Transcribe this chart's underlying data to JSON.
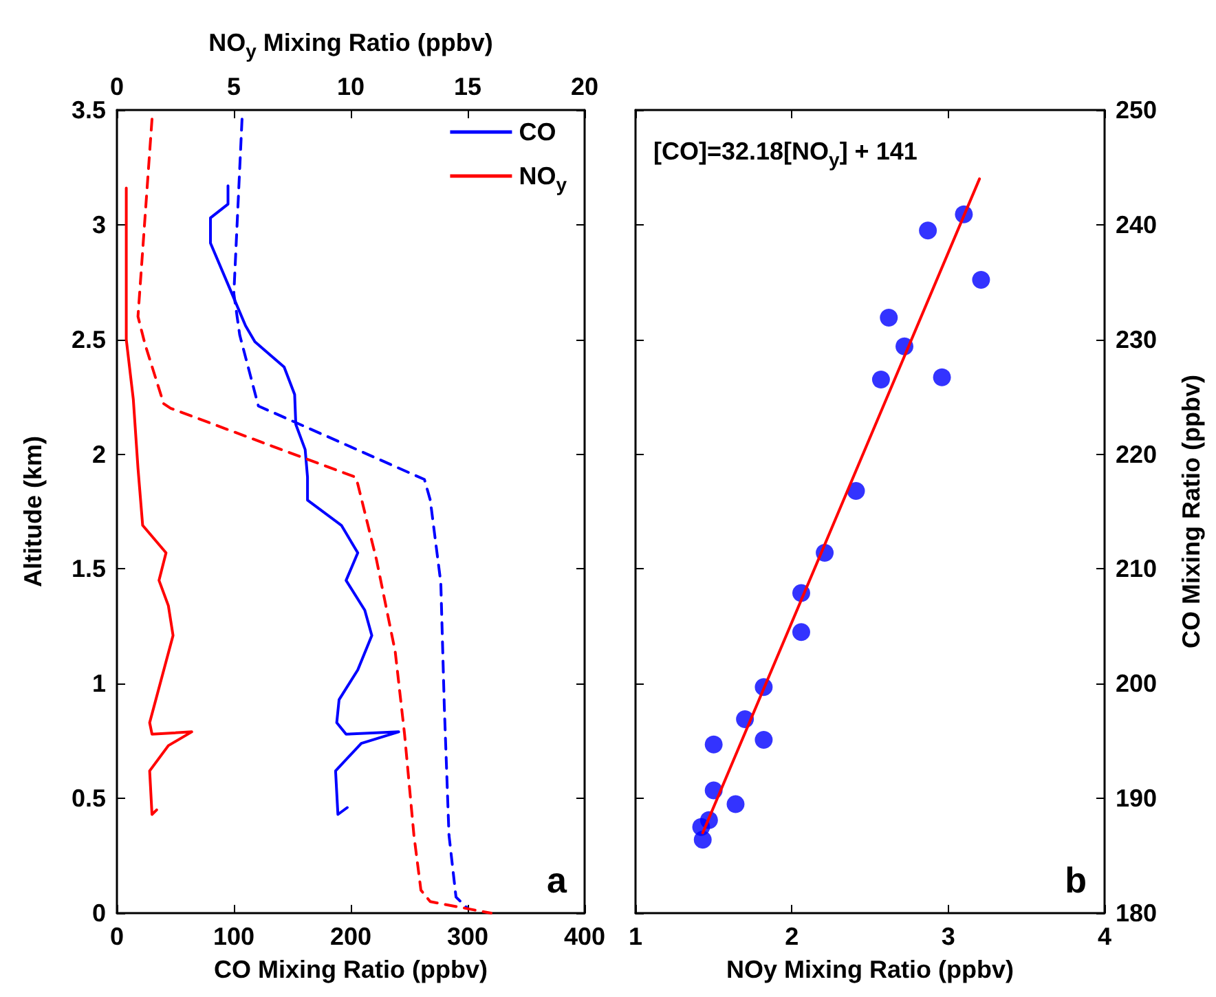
{
  "chart_data": [
    {
      "type": "line",
      "xlabel": "CO Mixing Ratio (ppbv)",
      "x2label": "NO$_{y}$ Mixing Ratio (ppbv)",
      "ylabel": "Altitude (km)",
      "xlim": [
        0,
        400
      ],
      "xticks": [
        0,
        100,
        200,
        300,
        400
      ],
      "x2lim": [
        0,
        20
      ],
      "x2ticks": [
        0,
        5,
        10,
        15,
        20
      ],
      "ylim": [
        0,
        3.5
      ],
      "yticks": [
        0,
        0.5,
        1,
        1.5,
        2,
        2.5,
        3,
        3.5
      ],
      "grid": false,
      "legend": "top right",
      "marker": "none",
      "annotations": [
        "a"
      ],
      "series": [
        {
          "name": "CO",
          "color": "#0000ff",
          "line_style": "solid",
          "x": [
            95,
            95,
            80,
            80,
            100,
            110,
            118,
            143,
            152,
            153,
            161,
            163,
            163,
            192,
            206,
            196,
            212,
            218,
            206,
            190,
            188,
            196,
            241,
            209,
            187,
            189,
            197
          ],
          "values": [
            3.17,
            3.09,
            3.03,
            2.92,
            2.68,
            2.56,
            2.49,
            2.38,
            2.26,
            2.13,
            2.02,
            1.9,
            1.8,
            1.69,
            1.57,
            1.45,
            1.32,
            1.21,
            1.06,
            0.93,
            0.83,
            0.78,
            0.79,
            0.74,
            0.62,
            0.43,
            0.46
          ]
        },
        {
          "name": "NO$_{y}$",
          "color": "#ff0000",
          "axis": "x2",
          "line_style": "solid",
          "x": [
            0.4,
            0.4,
            0.7,
            0.9,
            1.1,
            2.1,
            1.8,
            2.2,
            2.4,
            1.4,
            1.5,
            3.2,
            2.2,
            1.4,
            1.5,
            1.7
          ],
          "values": [
            3.16,
            2.5,
            2.24,
            1.94,
            1.69,
            1.57,
            1.45,
            1.34,
            1.21,
            0.83,
            0.78,
            0.79,
            0.73,
            0.62,
            0.43,
            0.45
          ]
        },
        {
          "color": "#0000ff",
          "line_style": "dashed",
          "x": [
            107,
            100,
            105,
            121,
            263,
            268,
            277,
            280,
            284,
            290,
            300
          ],
          "values": [
            3.46,
            2.7,
            2.52,
            2.21,
            1.89,
            1.8,
            1.44,
            0.9,
            0.34,
            0.07,
            0.02
          ]
        },
        {
          "color": "#ff0000",
          "axis": "x2",
          "line_style": "dashed",
          "x": [
            1.5,
            0.9,
            1.2,
            2.0,
            2.3,
            10.2,
            10.3,
            11.1,
            11.9,
            12.3,
            12.7,
            13.0,
            13.4,
            16.0
          ],
          "values": [
            3.46,
            2.6,
            2.48,
            2.22,
            2.2,
            1.9,
            1.87,
            1.54,
            1.14,
            0.78,
            0.34,
            0.1,
            0.05,
            0.0
          ]
        }
      ]
    },
    {
      "type": "scatter",
      "xlabel": "NOy Mixing Ratio (ppbv)",
      "y2label": "CO Mixing Ratio (ppbv)",
      "xlim": [
        1,
        4
      ],
      "xticks": [
        1,
        2,
        3,
        4
      ],
      "y2lim": [
        180,
        250
      ],
      "y2ticks": [
        180,
        190,
        200,
        210,
        220,
        230,
        240,
        250
      ],
      "grid": false,
      "legend": false,
      "annotations": [
        "[CO]=32.18[NO$_{y}$] + 141",
        "b"
      ],
      "series": [
        {
          "color": "#0000ff",
          "axis": "y2",
          "marker": "circle",
          "x": [
            3.1,
            2.87,
            3.21,
            2.62,
            2.72,
            2.57,
            2.96,
            2.41,
            2.21,
            2.06,
            2.06,
            1.82,
            1.7,
            1.82,
            1.5,
            1.5,
            1.64,
            1.47,
            1.42,
            1.43
          ],
          "values": [
            240.9,
            239.5,
            235.2,
            231.9,
            229.4,
            226.5,
            226.7,
            216.8,
            211.4,
            207.9,
            204.5,
            199.7,
            196.9,
            195.1,
            194.7,
            190.7,
            189.5,
            188.1,
            187.5,
            186.4
          ]
        },
        {
          "type": "line",
          "color": "#ff0000",
          "axis": "y2",
          "marker": "none",
          "line_style": "solid",
          "x": [
            1.43,
            3.2
          ],
          "values": [
            187.0,
            244.0
          ]
        }
      ]
    }
  ]
}
